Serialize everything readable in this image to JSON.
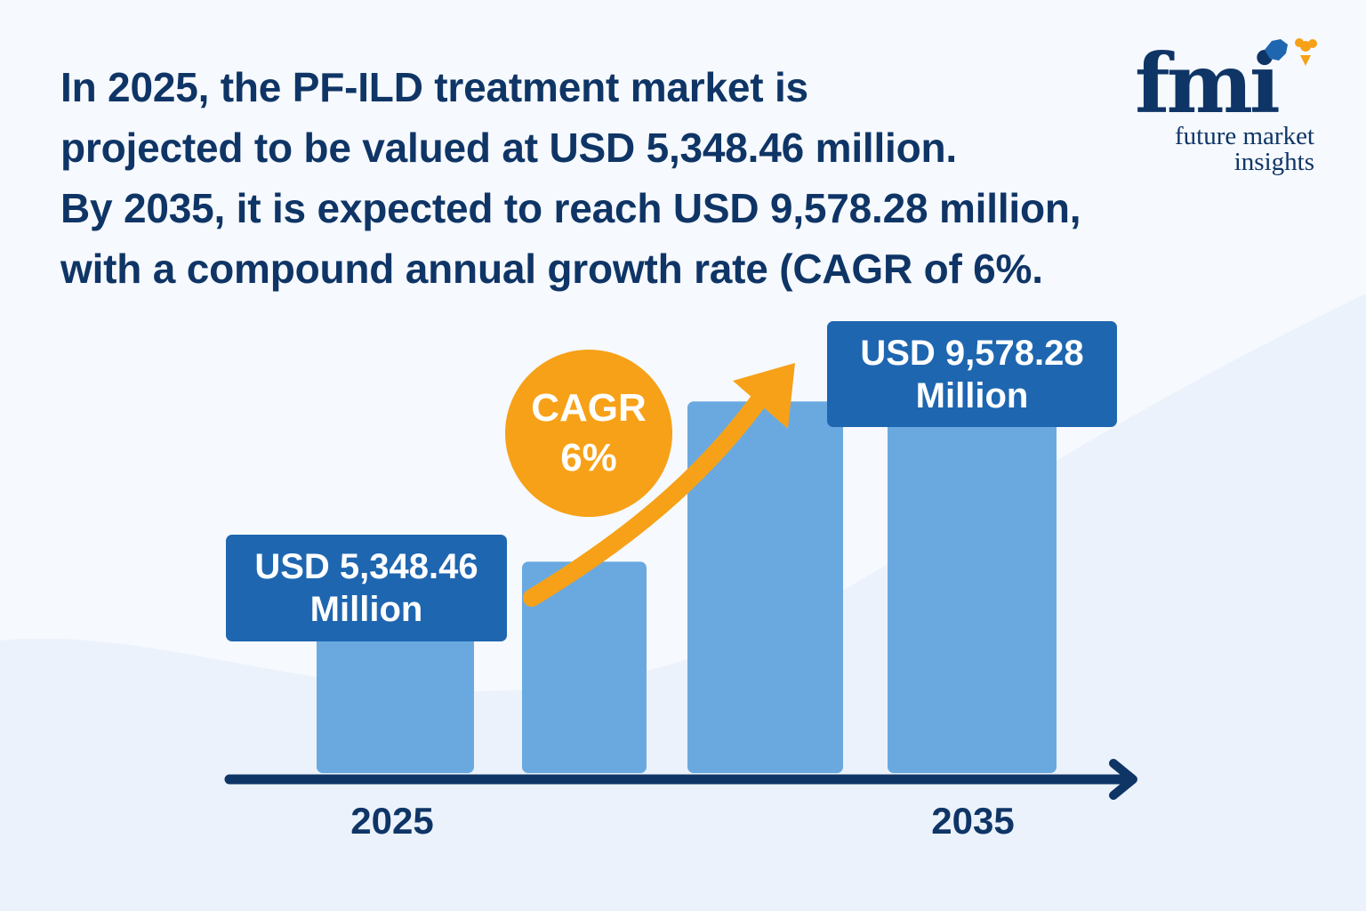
{
  "headline": {
    "lines": [
      "In 2025, the PF-ILD treatment market is",
      "projected to be valued at USD 5,348.46 million.",
      "By 2035, it is expected to reach USD 9,578.28 million,",
      "with a compound annual growth rate (CAGR of 6%."
    ]
  },
  "logo": {
    "mark": "fmi",
    "line1": "future market",
    "line2": "insights",
    "colors": {
      "navy": "#0f3566",
      "orange": "#f7a118"
    }
  },
  "chart_data": {
    "type": "bar",
    "categories": [
      "2025",
      "",
      "",
      "2035"
    ],
    "values": [
      5348.46,
      6100,
      8600,
      9578.28
    ],
    "title": "",
    "xlabel": "",
    "ylabel": "",
    "ylim": [
      2800,
      10700
    ],
    "grid": false,
    "bar_color": "#6aa9e0",
    "axis_color": "#0f3566"
  },
  "callouts": {
    "start": {
      "line1": "USD 5,348.46",
      "line2": "Million"
    },
    "end": {
      "line1": "USD 9,578.28",
      "line2": "Million"
    },
    "cagr": {
      "line1": "CAGR",
      "line2": "6%"
    }
  },
  "colors": {
    "box": "#1e66b0",
    "arrow": "#f7a118",
    "text": "#0f3566"
  }
}
